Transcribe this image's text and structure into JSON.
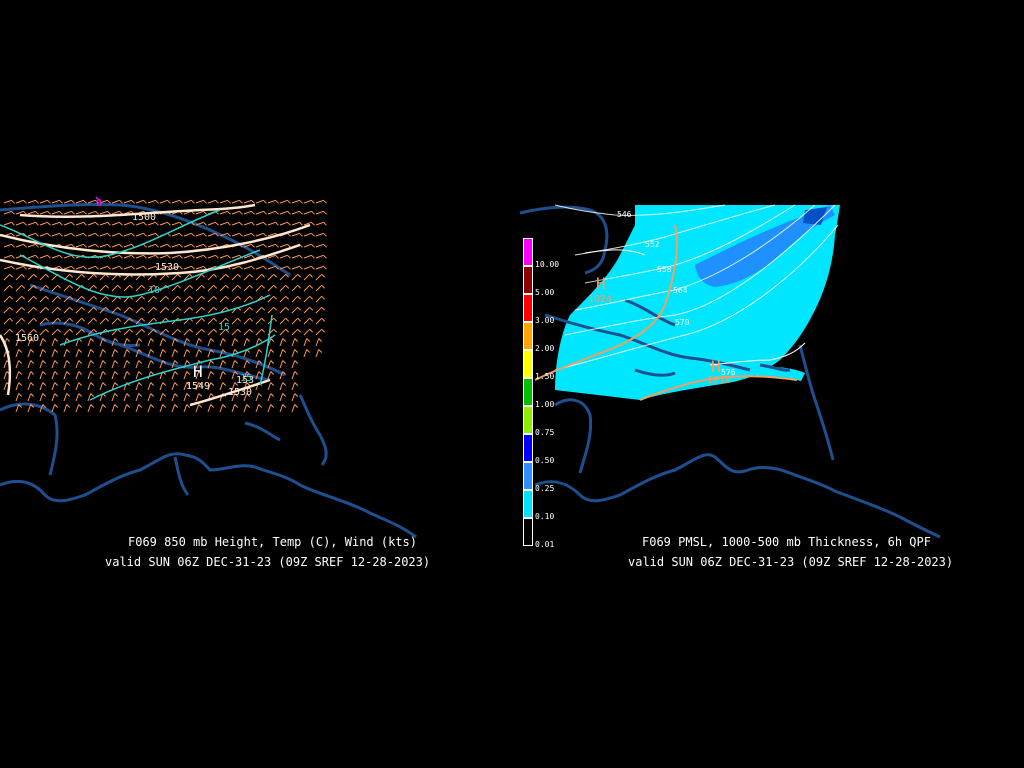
{
  "left_panel": {
    "title": "F069 850 mb Height, Temp (C), Wind (kts)",
    "valid": "valid SUN 06Z DEC-31-23 (09Z SREF 12-28-2023)",
    "height_labels": [
      "1500",
      "1530",
      "1560",
      "1549",
      "1530",
      "153"
    ],
    "temp_labels": [
      "0",
      "10",
      "15",
      "15"
    ],
    "high_marker": "H",
    "colors": {
      "height": "#ffe8d0",
      "temp": "#30d0c8",
      "wind": "#ff9a5a",
      "coast": "#1e4f8f",
      "zero_temp": "#ff00ff"
    }
  },
  "right_panel": {
    "title": "F069 PMSL, 1000-500 mb Thickness, 6h QPF",
    "valid": "valid SUN 06Z DEC-31-23 (09Z SREF 12-28-2023)",
    "thickness_labels": [
      "546",
      "552",
      "558",
      "564",
      "570",
      "576"
    ],
    "pressure_labels": [
      "1024",
      "1018",
      "1024"
    ],
    "high_markers": [
      "H",
      "H"
    ],
    "colorbar": [
      {
        "label": "10.00",
        "color": "#ff00ff"
      },
      {
        "label": "5.00",
        "color": "#8b0000"
      },
      {
        "label": "3.00",
        "color": "#ff0000"
      },
      {
        "label": "2.00",
        "color": "#ffa500"
      },
      {
        "label": "1.50",
        "color": "#ffff00"
      },
      {
        "label": "1.00",
        "color": "#00c000"
      },
      {
        "label": "0.75",
        "color": "#90ee00"
      },
      {
        "label": "0.50",
        "color": "#0000ff"
      },
      {
        "label": "0.25",
        "color": "#3090ff"
      },
      {
        "label": "0.10",
        "color": "#00e0ff"
      },
      {
        "label": "0.01",
        "color": "#000000"
      }
    ],
    "colors": {
      "qpf_light": "#00e6ff",
      "qpf_mid": "#1e90ff",
      "qpf_dark": "#0050c8",
      "isobar": "#ffffff",
      "thickness_line": "#f0a060"
    }
  }
}
